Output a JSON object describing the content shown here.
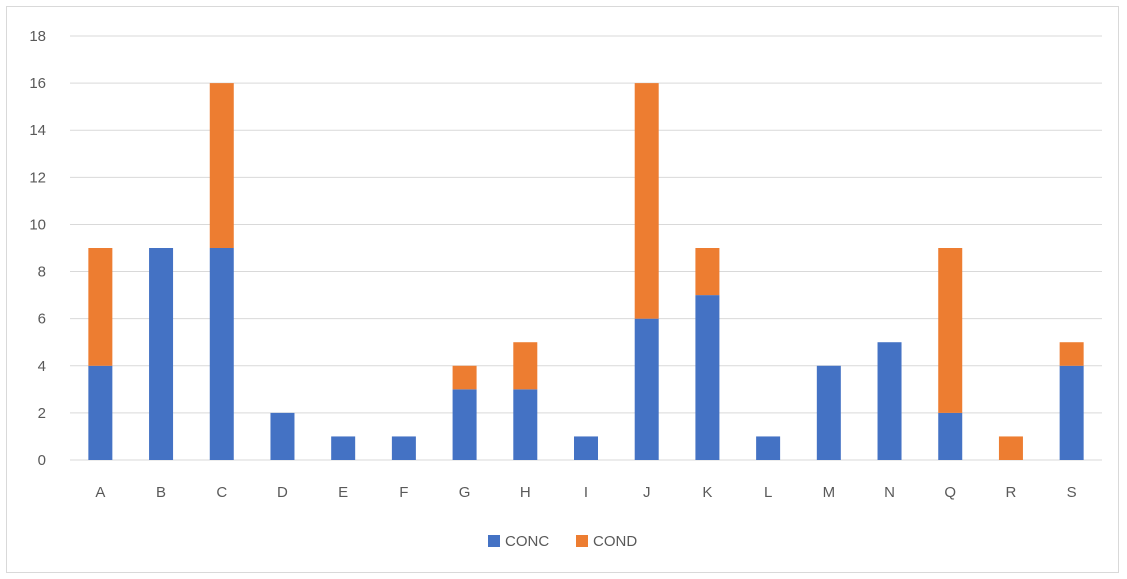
{
  "chart_data": {
    "type": "bar",
    "stacked": true,
    "categories": [
      "A",
      "B",
      "C",
      "D",
      "E",
      "F",
      "G",
      "H",
      "I",
      "J",
      "K",
      "L",
      "M",
      "N",
      "Q",
      "R",
      "S"
    ],
    "series": [
      {
        "name": "CONC",
        "color": "#4472c4",
        "values": [
          4,
          9,
          9,
          2,
          1,
          1,
          3,
          3,
          1,
          6,
          7,
          1,
          4,
          5,
          2,
          0,
          4
        ]
      },
      {
        "name": "COND",
        "color": "#ed7d31",
        "values": [
          5,
          0,
          7,
          0,
          0,
          0,
          1,
          2,
          0,
          10,
          2,
          0,
          0,
          0,
          7,
          1,
          1
        ]
      }
    ],
    "yticks": [
      "0",
      "2",
      "4",
      "6",
      "8",
      "10",
      "12",
      "14",
      "16",
      "18"
    ],
    "ylim": [
      0,
      18
    ],
    "grid": true,
    "legend": "bottom-center",
    "title": "",
    "xlabel": "",
    "ylabel": ""
  }
}
